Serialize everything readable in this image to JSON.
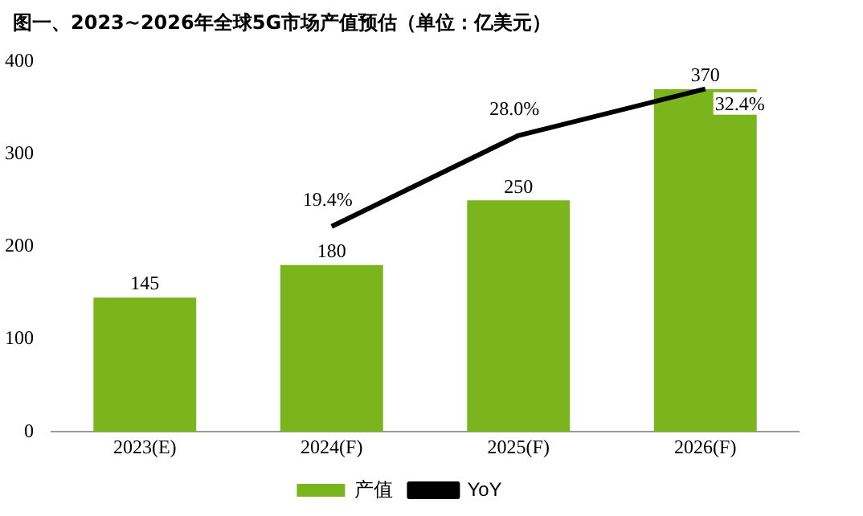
{
  "chart_data": {
    "type": "bar",
    "title": "图一、2023~2026年全球5G市场产值预估（单位：亿美元）",
    "categories": [
      "2023(E)",
      "2024(F)",
      "2025(F)",
      "2026(F)"
    ],
    "series": [
      {
        "name": "产值",
        "color": "#7ab51d",
        "values": [
          145,
          180,
          250,
          370
        ],
        "value_labels": [
          "145",
          "180",
          "250",
          "370"
        ]
      },
      {
        "name": "YoY",
        "type": "line",
        "axis": "y2",
        "color": "#000000",
        "values": [
          null,
          19.4,
          28.0,
          32.4
        ],
        "value_labels": [
          null,
          "19.4%",
          "28.0%",
          "32.4%"
        ]
      }
    ],
    "ylim": [
      0,
      400
    ],
    "yticks": [
      0,
      100,
      200,
      300,
      400
    ],
    "grid": false,
    "legend": "bottom",
    "marker": "none"
  }
}
